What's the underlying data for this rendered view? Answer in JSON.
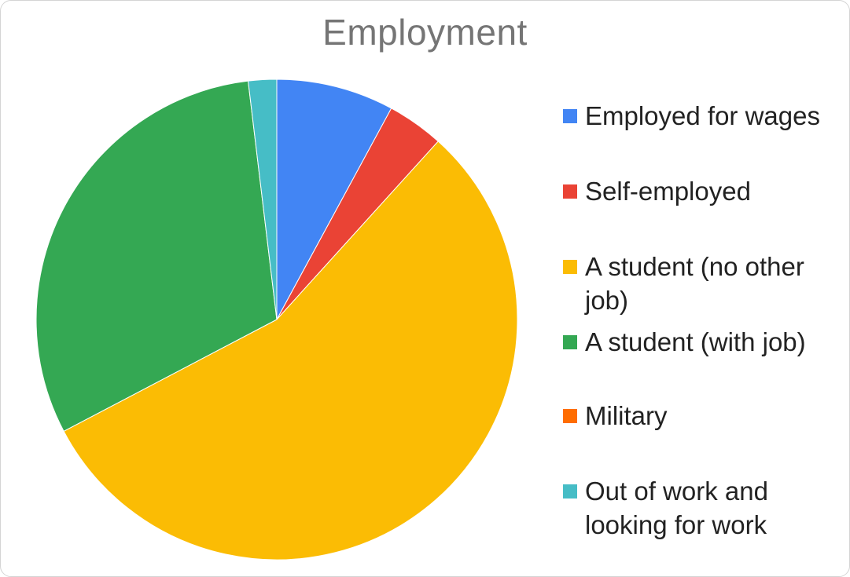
{
  "chart_data": {
    "type": "pie",
    "title": "Employment",
    "legend_position": "right",
    "slices": [
      {
        "label": "Employed for wages",
        "value": 7.9,
        "color": "#4285f4"
      },
      {
        "label": "Self-employed",
        "value": 3.8,
        "color": "#ea4335"
      },
      {
        "label": "A student (no other job)",
        "value": 55.6,
        "color": "#fbbc04"
      },
      {
        "label": "A student (with job)",
        "value": 30.8,
        "color": "#34a853"
      },
      {
        "label": "Military",
        "value": 0,
        "color": "#ff6d01"
      },
      {
        "label": "Out of work and looking for work",
        "value": 1.9,
        "color": "#46bdc6"
      }
    ]
  }
}
